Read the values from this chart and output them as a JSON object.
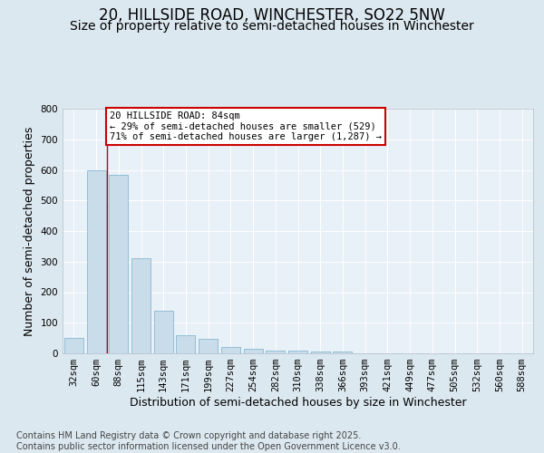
{
  "title_line1": "20, HILLSIDE ROAD, WINCHESTER, SO22 5NW",
  "title_line2": "Size of property relative to semi-detached houses in Winchester",
  "xlabel": "Distribution of semi-detached houses by size in Winchester",
  "ylabel": "Number of semi-detached properties",
  "categories": [
    "32sqm",
    "60sqm",
    "88sqm",
    "115sqm",
    "143sqm",
    "171sqm",
    "199sqm",
    "227sqm",
    "254sqm",
    "282sqm",
    "310sqm",
    "338sqm",
    "366sqm",
    "393sqm",
    "421sqm",
    "449sqm",
    "477sqm",
    "505sqm",
    "532sqm",
    "560sqm",
    "588sqm"
  ],
  "values": [
    50,
    600,
    585,
    310,
    140,
    60,
    47,
    20,
    15,
    10,
    10,
    7,
    5,
    0,
    0,
    0,
    0,
    0,
    0,
    0,
    0
  ],
  "bar_color": "#c9dcea",
  "bar_edge_color": "#7aafc8",
  "highlight_line_index": 2,
  "highlight_line_color": "#cc0000",
  "annotation_text": "20 HILLSIDE ROAD: 84sqm\n← 29% of semi-detached houses are smaller (529)\n71% of semi-detached houses are larger (1,287) →",
  "annotation_box_facecolor": "#ffffff",
  "annotation_box_edgecolor": "#cc0000",
  "ylim": [
    0,
    800
  ],
  "yticks": [
    0,
    100,
    200,
    300,
    400,
    500,
    600,
    700,
    800
  ],
  "footer_text": "Contains HM Land Registry data © Crown copyright and database right 2025.\nContains public sector information licensed under the Open Government Licence v3.0.",
  "background_color": "#dce8f0",
  "plot_bg_color": "#e8f0f8",
  "grid_color": "#ffffff",
  "title_fontsize": 12,
  "subtitle_fontsize": 10,
  "axis_label_fontsize": 9,
  "tick_fontsize": 7.5,
  "annotation_fontsize": 7.5,
  "footer_fontsize": 7
}
